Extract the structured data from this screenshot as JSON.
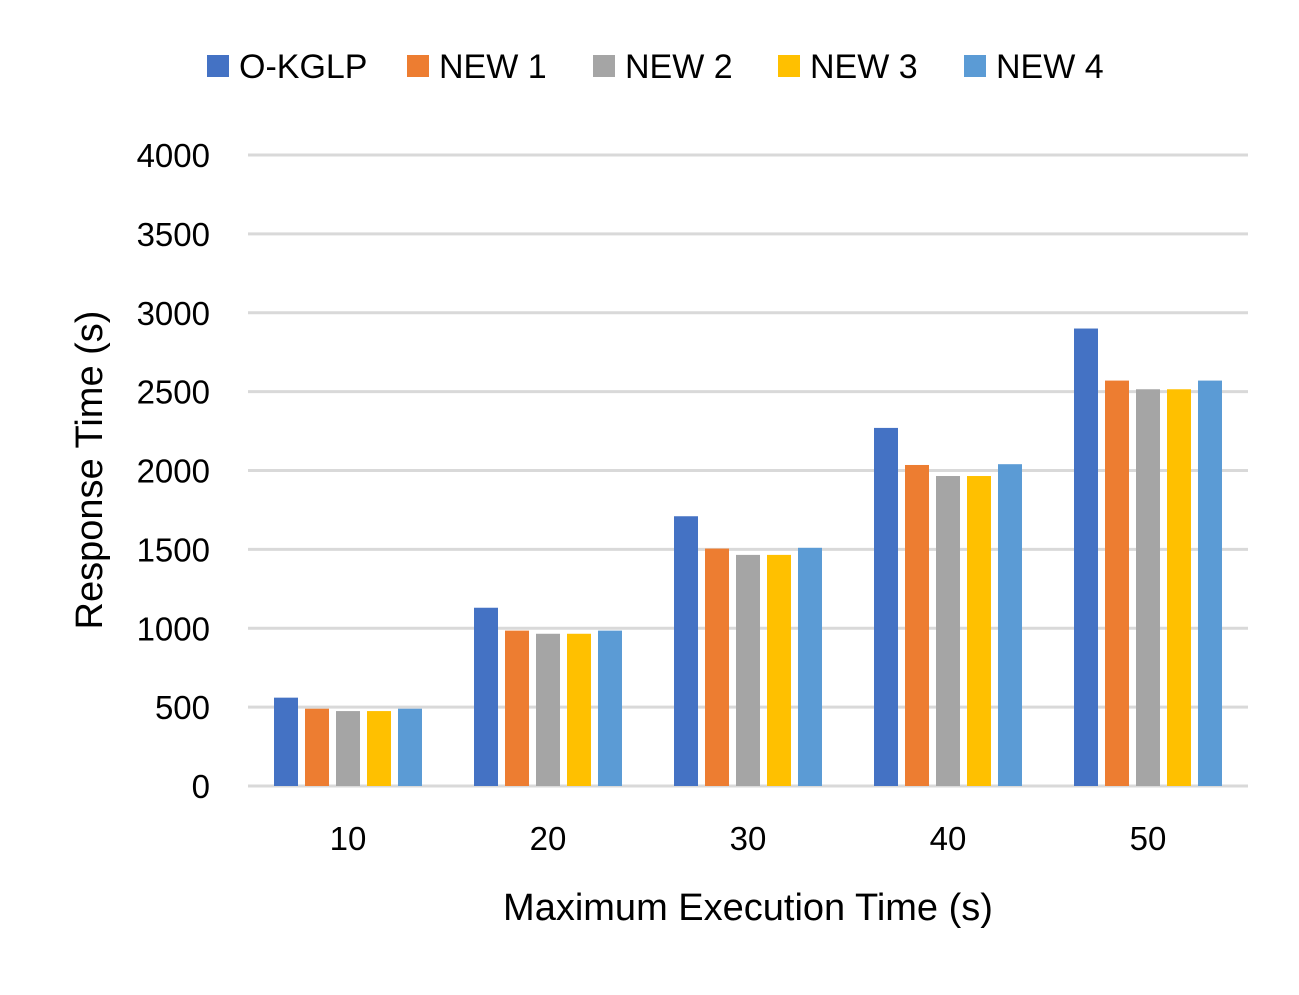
{
  "chart_data": {
    "type": "bar",
    "title": "",
    "xlabel": "Maximum Execution Time (s)",
    "ylabel": "Response Time (s)",
    "ylim": [
      0,
      4000
    ],
    "yticks": [
      0,
      500,
      1000,
      1500,
      2000,
      2500,
      3000,
      3500,
      4000
    ],
    "grid": true,
    "legend_position": "top-center",
    "categories": [
      "10",
      "20",
      "30",
      "40",
      "50"
    ],
    "series": [
      {
        "name": "O-KGLP",
        "color": "#4472C4",
        "values": [
          560,
          1130,
          1710,
          2270,
          2900
        ]
      },
      {
        "name": "NEW 1",
        "color": "#ED7D31",
        "values": [
          490,
          985,
          1505,
          2035,
          2570
        ]
      },
      {
        "name": "NEW 2",
        "color": "#A5A5A5",
        "values": [
          475,
          965,
          1465,
          1965,
          2515
        ]
      },
      {
        "name": "NEW 3",
        "color": "#FFC000",
        "values": [
          475,
          965,
          1465,
          1965,
          2515
        ]
      },
      {
        "name": "NEW 4",
        "color": "#5B9BD5",
        "values": [
          490,
          985,
          1510,
          2040,
          2570
        ]
      }
    ]
  }
}
